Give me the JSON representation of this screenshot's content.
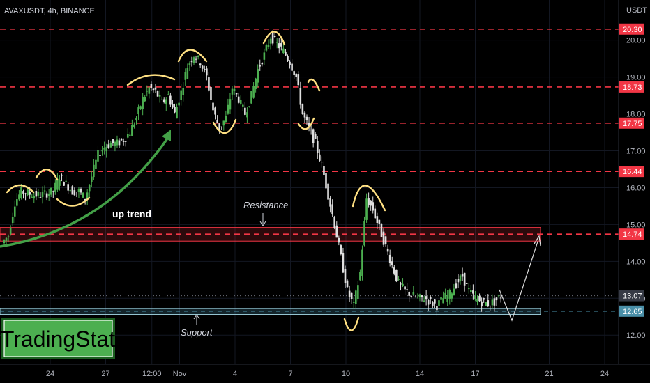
{
  "header": {
    "symbol": "AVAXUSDT, 4h, BINANCE",
    "currency": "USDT"
  },
  "logo": {
    "text": "TradingStat"
  },
  "annotations": {
    "resistance": "Resistance",
    "support": "Support",
    "uptrend": "up trend"
  },
  "colors": {
    "up": "#26a69a",
    "up_bright": "#4caf50",
    "down": "#e0e0e0",
    "resistance_line": "#f23645",
    "support_line": "#4a8fa8",
    "highlight": "#ffe082",
    "arrow": "#43a047"
  },
  "chart_data": {
    "type": "candlestick",
    "y_axis": {
      "ylim": [
        11.4,
        20.9
      ],
      "ticks": [
        12.0,
        13.0,
        14.0,
        15.0,
        16.0,
        17.0,
        18.0,
        19.0,
        20.0
      ],
      "tick_labels": [
        "12.00",
        "13.00",
        "14.00",
        "15.00",
        "16.00",
        "17.00",
        "18.00",
        "19.00",
        "20.00"
      ]
    },
    "x_axis": {
      "tick_labels": [
        "24",
        "27",
        "12:00",
        "Nov",
        "4",
        "7",
        "10",
        "14",
        "17",
        "21",
        "24"
      ],
      "ticks_x_index": [
        0,
        3,
        5.5,
        7,
        10,
        13,
        16,
        20,
        23,
        27,
        30
      ]
    },
    "price_tags": [
      {
        "value": 20.3,
        "label": "20.30",
        "kind": "resistance"
      },
      {
        "value": 18.73,
        "label": "18.73",
        "kind": "resistance"
      },
      {
        "value": 17.75,
        "label": "17.75",
        "kind": "resistance"
      },
      {
        "value": 16.44,
        "label": "16.44",
        "kind": "resistance"
      },
      {
        "value": 14.74,
        "label": "14.74",
        "kind": "resistance"
      },
      {
        "value": 13.07,
        "label": "13.07",
        "kind": "last"
      },
      {
        "value": 12.65,
        "label": "12.65",
        "kind": "support"
      }
    ],
    "zones": [
      {
        "name": "resistance-zone",
        "from": 14.55,
        "to": 14.92
      },
      {
        "name": "support-zone",
        "from": 12.56,
        "to": 12.72
      }
    ],
    "close_series": [
      14.7,
      15.6,
      15.9,
      15.85,
      15.8,
      15.8,
      15.85,
      15.9,
      16.3,
      16.1,
      15.9,
      15.9,
      15.7,
      16.3,
      16.9,
      17.1,
      17.2,
      17.2,
      17.3,
      17.5,
      17.9,
      18.4,
      18.7,
      18.6,
      18.3,
      18.5,
      18.0,
      18.6,
      19.3,
      19.6,
      19.4,
      19.0,
      18.1,
      17.6,
      17.9,
      18.7,
      18.4,
      18.0,
      18.5,
      19.2,
      19.6,
      20.1,
      19.9,
      19.7,
      19.4,
      19.0,
      18.0,
      17.6,
      17.2,
      16.6,
      15.8,
      15.0,
      14.1,
      13.2,
      12.8,
      13.7,
      15.7,
      15.4,
      14.9,
      14.4,
      13.9,
      13.4,
      13.2,
      13.1,
      13.0,
      13.0,
      12.9,
      12.8,
      13.0,
      13.1,
      13.4,
      13.6,
      13.2,
      13.0,
      12.9,
      12.85,
      12.9,
      13.07
    ]
  }
}
